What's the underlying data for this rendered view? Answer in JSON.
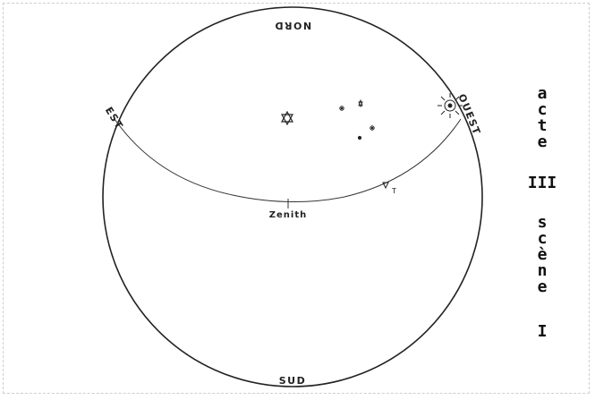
{
  "compass": {
    "north": "NORD",
    "south": "SUD",
    "east": "EST",
    "west": "OUEST"
  },
  "zenith_label": "Zenith",
  "star_marker": "T",
  "vertical_title": {
    "word1": [
      "a",
      "c",
      "t",
      "e"
    ],
    "roman1": "III",
    "word2": [
      "s",
      "c",
      "è",
      "n",
      "e"
    ],
    "roman2": "I"
  }
}
